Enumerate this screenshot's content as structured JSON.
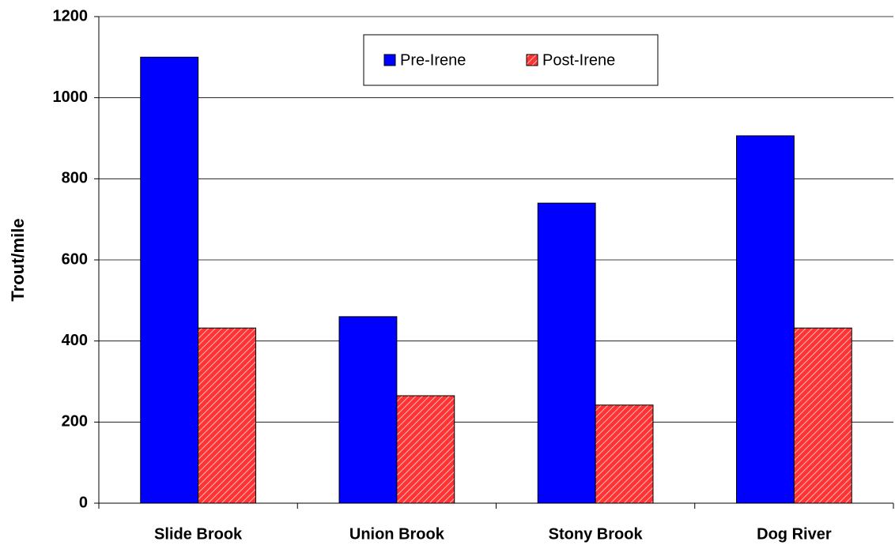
{
  "chart_data": {
    "type": "bar",
    "y_label": "Trout/mile",
    "categories": [
      "Slide Brook",
      "Union Brook",
      "Stony Brook",
      "Dog River"
    ],
    "series": [
      {
        "name": "Pre-Irene",
        "color": "#0000ff",
        "values": [
          1100,
          460,
          740,
          906
        ]
      },
      {
        "name": "Post-Irene",
        "color": "#ff3333",
        "values": [
          432,
          265,
          242,
          432
        ]
      }
    ],
    "ylim": [
      0,
      1200
    ],
    "yticks": [
      0,
      200,
      400,
      600,
      800,
      1000,
      1200
    ],
    "grid": true,
    "legend": "top"
  }
}
